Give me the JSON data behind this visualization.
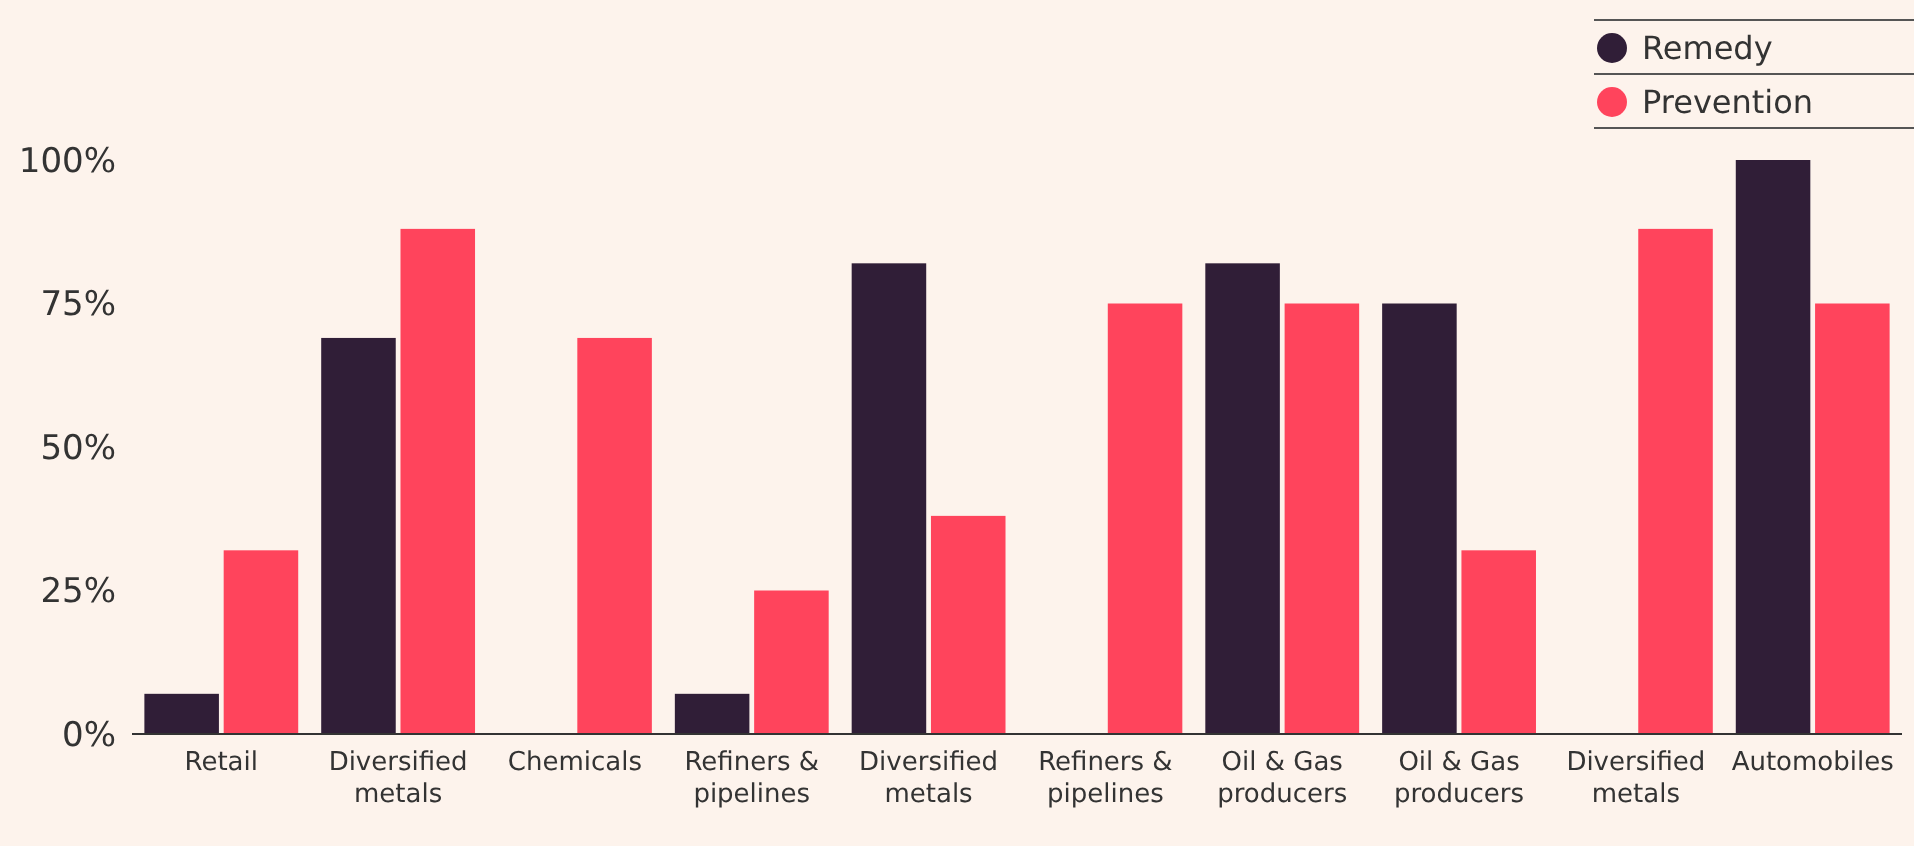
{
  "chart_data": {
    "type": "bar",
    "categories": [
      "Retail",
      "Diversified metals",
      "Chemicals",
      "Refiners & pipelines",
      "Diversified metals",
      "Refiners & pipelines",
      "Oil & Gas producers",
      "Oil & Gas producers",
      "Diversified metals",
      "Automobiles"
    ],
    "series": [
      {
        "name": "Remedy",
        "color": "#301e37",
        "values": [
          7,
          69,
          0,
          7,
          82,
          0,
          82,
          75,
          0,
          100
        ]
      },
      {
        "name": "Prevention",
        "color": "#ff445c",
        "values": [
          32,
          88,
          69,
          25,
          38,
          75,
          75,
          32,
          88,
          75
        ]
      }
    ],
    "ylim": [
      0,
      100
    ],
    "yticks": [
      {
        "value": 0,
        "label": "0%"
      },
      {
        "value": 25,
        "label": "25%"
      },
      {
        "value": 50,
        "label": "50%"
      },
      {
        "value": 75,
        "label": "75%"
      },
      {
        "value": 100,
        "label": "100%"
      }
    ],
    "grid": false,
    "legend": "top right"
  }
}
